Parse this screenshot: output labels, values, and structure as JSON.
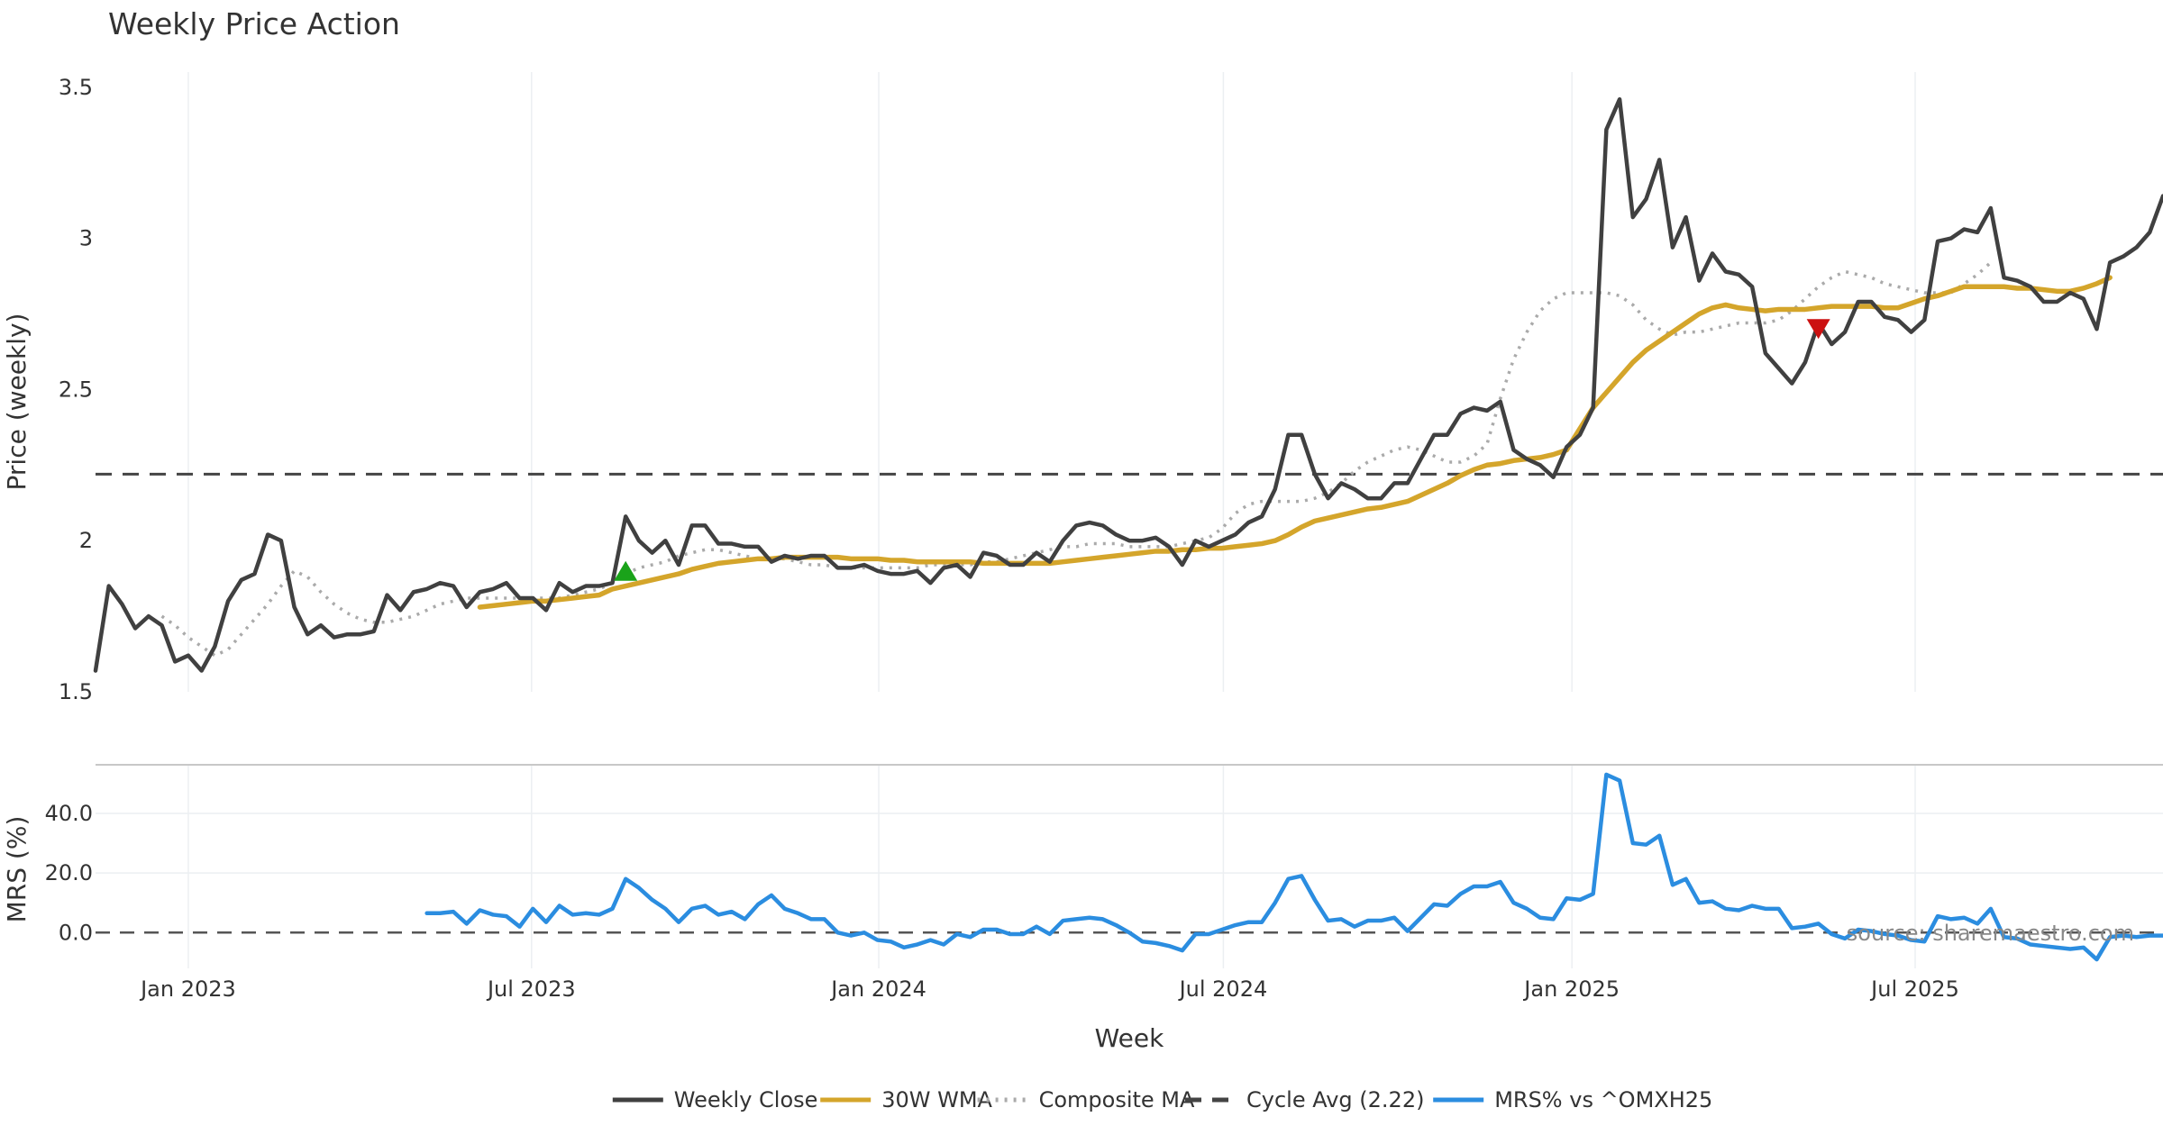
{
  "chart_data": [
    {
      "type": "line",
      "title": "Weekly Price Action",
      "xlabel": "",
      "ylabel": "Price (weekly)",
      "ylim": [
        1.5,
        3.55
      ],
      "yticks": [
        1.5,
        2,
        2.5,
        3,
        3.5
      ],
      "ytick_labels": [
        "1.5",
        "2",
        "2.5",
        "3",
        "3.5"
      ],
      "grid": true,
      "x_start": "2022-11-14",
      "x_interval_days": 7,
      "series": [
        {
          "name": "Weekly Close",
          "color": "#404040",
          "style": "solid",
          "values": [
            1.57,
            1.85,
            1.79,
            1.71,
            1.75,
            1.72,
            1.6,
            1.62,
            1.57,
            1.65,
            1.8,
            1.87,
            1.89,
            2.02,
            2.0,
            1.78,
            1.69,
            1.72,
            1.68,
            1.69,
            1.69,
            1.7,
            1.82,
            1.77,
            1.83,
            1.84,
            1.86,
            1.85,
            1.78,
            1.83,
            1.84,
            1.86,
            1.81,
            1.81,
            1.77,
            1.86,
            1.83,
            1.85,
            1.85,
            1.86,
            2.08,
            2.0,
            1.96,
            2.0,
            1.92,
            2.05,
            2.05,
            1.99,
            1.99,
            1.98,
            1.98,
            1.93,
            1.95,
            1.94,
            1.95,
            1.95,
            1.91,
            1.91,
            1.92,
            1.9,
            1.89,
            1.89,
            1.9,
            1.86,
            1.91,
            1.92,
            1.88,
            1.96,
            1.95,
            1.92,
            1.92,
            1.96,
            1.93,
            2.0,
            2.05,
            2.06,
            2.05,
            2.02,
            2.0,
            2.0,
            2.01,
            1.98,
            1.92,
            2.0,
            1.98,
            2.0,
            2.02,
            2.06,
            2.08,
            2.17,
            2.35,
            2.35,
            2.22,
            2.14,
            2.19,
            2.17,
            2.14,
            2.14,
            2.19,
            2.19,
            2.27,
            2.35,
            2.35,
            2.42,
            2.44,
            2.43,
            2.46,
            2.3,
            2.27,
            2.25,
            2.21,
            2.31,
            2.35,
            2.44,
            3.36,
            3.46,
            3.07,
            3.13,
            3.26,
            2.97,
            3.07,
            2.86,
            2.95,
            2.89,
            2.88,
            2.84,
            2.62,
            2.57,
            2.52,
            2.59,
            2.72,
            2.65,
            2.69,
            2.79,
            2.79,
            2.74,
            2.73,
            2.69,
            2.73,
            2.99,
            3.0,
            3.03,
            3.02,
            3.1,
            2.87,
            2.86,
            2.84,
            2.79,
            2.79,
            2.82,
            2.8,
            2.7,
            2.92,
            2.94,
            2.97,
            3.02,
            3.14
          ]
        },
        {
          "name": "30W WMA",
          "color": "#d4a52b",
          "style": "solid",
          "start_index": 29,
          "values": [
            1.78,
            1.785,
            1.79,
            1.795,
            1.8,
            1.8,
            1.805,
            1.81,
            1.815,
            1.82,
            1.84,
            1.85,
            1.86,
            1.87,
            1.88,
            1.89,
            1.905,
            1.915,
            1.925,
            1.93,
            1.935,
            1.94,
            1.94,
            1.945,
            1.945,
            1.945,
            1.945,
            1.945,
            1.94,
            1.94,
            1.94,
            1.935,
            1.935,
            1.93,
            1.93,
            1.93,
            1.93,
            1.93,
            1.925,
            1.925,
            1.925,
            1.925,
            1.925,
            1.925,
            1.93,
            1.935,
            1.94,
            1.945,
            1.95,
            1.955,
            1.96,
            1.965,
            1.965,
            1.97,
            1.97,
            1.975,
            1.975,
            1.98,
            1.985,
            1.99,
            2.0,
            2.02,
            2.045,
            2.065,
            2.075,
            2.085,
            2.095,
            2.105,
            2.11,
            2.12,
            2.13,
            2.15,
            2.17,
            2.19,
            2.215,
            2.235,
            2.25,
            2.255,
            2.265,
            2.27,
            2.275,
            2.285,
            2.3,
            2.37,
            2.44,
            2.49,
            2.54,
            2.59,
            2.63,
            2.66,
            2.69,
            2.72,
            2.75,
            2.77,
            2.78,
            2.77,
            2.765,
            2.76,
            2.765,
            2.765,
            2.765,
            2.77,
            2.775,
            2.775,
            2.775,
            2.775,
            2.77,
            2.77,
            2.785,
            2.8,
            2.81,
            2.825,
            2.84,
            2.84,
            2.84,
            2.84,
            2.835,
            2.835,
            2.83,
            2.825,
            2.825,
            2.835,
            2.85,
            2.87
          ]
        },
        {
          "name": "Composite MA",
          "color": "#aaaaaa",
          "style": "dotted",
          "start_index": 5,
          "values": [
            1.75,
            1.72,
            1.68,
            1.65,
            1.62,
            1.64,
            1.69,
            1.74,
            1.79,
            1.85,
            1.9,
            1.88,
            1.83,
            1.79,
            1.76,
            1.74,
            1.73,
            1.73,
            1.74,
            1.75,
            1.77,
            1.79,
            1.8,
            1.81,
            1.81,
            1.81,
            1.81,
            1.81,
            1.81,
            1.81,
            1.81,
            1.82,
            1.83,
            1.84,
            1.86,
            1.89,
            1.91,
            1.92,
            1.93,
            1.95,
            1.96,
            1.97,
            1.97,
            1.96,
            1.95,
            1.94,
            1.94,
            1.94,
            1.93,
            1.92,
            1.92,
            1.91,
            1.91,
            1.91,
            1.91,
            1.91,
            1.91,
            1.91,
            1.92,
            1.92,
            1.92,
            1.92,
            1.93,
            1.93,
            1.94,
            1.95,
            1.96,
            1.97,
            1.98,
            1.98,
            1.99,
            1.99,
            1.99,
            1.98,
            1.98,
            1.98,
            1.98,
            1.99,
            2.0,
            2.01,
            2.04,
            2.09,
            2.12,
            2.13,
            2.13,
            2.13,
            2.13,
            2.14,
            2.16,
            2.19,
            2.23,
            2.26,
            2.28,
            2.3,
            2.31,
            2.3,
            2.28,
            2.26,
            2.26,
            2.28,
            2.32,
            2.47,
            2.6,
            2.69,
            2.76,
            2.8,
            2.82,
            2.82,
            2.82,
            2.82,
            2.81,
            2.78,
            2.73,
            2.7,
            2.68,
            2.69,
            2.69,
            2.7,
            2.71,
            2.72,
            2.72,
            2.72,
            2.73,
            2.76,
            2.8,
            2.84,
            2.87,
            2.89,
            2.88,
            2.87,
            2.85,
            2.84,
            2.83,
            2.82,
            2.82,
            2.82,
            2.85,
            2.88,
            2.92
          ]
        },
        {
          "name": "Cycle Avg (2.22)",
          "color": "#444444",
          "style": "dashed",
          "value": 2.22
        }
      ],
      "markers": [
        {
          "type": "buy",
          "shape": "triangle-up",
          "color": "#1aa31a",
          "index": 40,
          "value": 1.9
        },
        {
          "type": "sell",
          "shape": "triangle-down",
          "color": "#cc1111",
          "index": 130,
          "value": 2.7
        }
      ]
    },
    {
      "type": "line",
      "title": "",
      "xlabel": "Week",
      "ylabel": "MRS (%)",
      "ylim": [
        -12,
        56
      ],
      "yticks": [
        0,
        20,
        40
      ],
      "ytick_labels": [
        "0.0",
        "20.0",
        "40.0"
      ],
      "grid": true,
      "reference_line": {
        "value": 0,
        "style": "dashed",
        "color": "#555555"
      },
      "series": [
        {
          "name": "MRS% vs ^OMXH25",
          "color": "#2b8de0",
          "style": "solid",
          "start_index": 25,
          "values": [
            6.5,
            6.5,
            7,
            3,
            7.5,
            6,
            5.5,
            2,
            8,
            3.5,
            9,
            6,
            6.5,
            6,
            8,
            18,
            15,
            11,
            8,
            3.5,
            8,
            9,
            6,
            7,
            4.5,
            9.5,
            12.5,
            8,
            6.5,
            4.5,
            4.5,
            0,
            -1,
            0,
            -2.5,
            -3,
            -5,
            -4,
            -2.5,
            -4,
            -0.5,
            -1.5,
            1,
            1,
            -0.5,
            -0.5,
            2,
            -0.5,
            4,
            4.5,
            5,
            4.5,
            2.5,
            0,
            -3,
            -3.5,
            -4.5,
            -6,
            -0.5,
            -0.5,
            1,
            2.5,
            3.5,
            3.5,
            10,
            18,
            19,
            11,
            4,
            4.5,
            2,
            4,
            4,
            5,
            0.5,
            5,
            9.5,
            9,
            13,
            15.5,
            15.5,
            17,
            10,
            8,
            5,
            4.5,
            11.5,
            11,
            13,
            53,
            51,
            30,
            29.5,
            32.5,
            16,
            18,
            10,
            10.5,
            8,
            7.5,
            9,
            8,
            8,
            1.5,
            2,
            3,
            -0.5,
            -2,
            1,
            0.5,
            -0.5,
            -1,
            -2.5,
            -3,
            5.5,
            4.5,
            5,
            3,
            8,
            -1.5,
            -2,
            -4,
            -4.5,
            -5,
            -5.5,
            -5,
            -9,
            -1.5,
            -1,
            -1.5,
            -1,
            -1
          ]
        }
      ]
    }
  ],
  "x_axis": {
    "ticks": [
      {
        "label": "Jan 2023",
        "index": 7.0
      },
      {
        "label": "Jul 2023",
        "index": 32.9
      },
      {
        "label": "Jan 2024",
        "index": 59.1
      },
      {
        "label": "Jul 2024",
        "index": 85.1
      },
      {
        "label": "Jan 2025",
        "index": 111.4
      },
      {
        "label": "Jul 2025",
        "index": 137.3
      }
    ]
  },
  "legend": {
    "position": "bottom-center",
    "items": [
      {
        "label": "Weekly Close",
        "color": "#404040",
        "style": "solid"
      },
      {
        "label": "30W WMA",
        "color": "#d4a52b",
        "style": "solid"
      },
      {
        "label": "Composite MA",
        "color": "#aaaaaa",
        "style": "dotted"
      },
      {
        "label": "Cycle Avg (2.22)",
        "color": "#444444",
        "style": "dashed"
      },
      {
        "label": "MRS% vs ^OMXH25",
        "color": "#2b8de0",
        "style": "solid"
      }
    ]
  },
  "source_text": "source: sharemaestro.com"
}
